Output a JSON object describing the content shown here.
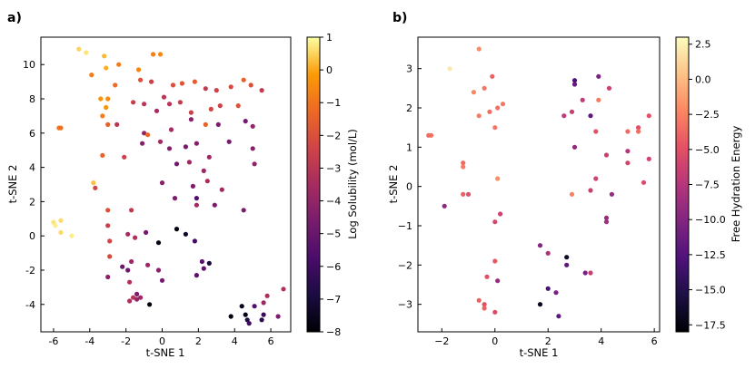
{
  "chart_data": [
    {
      "type": "scatter",
      "panel_label": "a)",
      "xlabel": "t-SNE 1",
      "ylabel": "t-SNE 2",
      "xlim": [
        -6.7,
        7.1
      ],
      "ylim": [
        -5.6,
        11.6
      ],
      "xticks": [
        "-6",
        "-4",
        "-2",
        "0",
        "2",
        "4",
        "6"
      ],
      "xtick_values": [
        -6,
        -4,
        -2,
        0,
        2,
        4,
        6
      ],
      "yticks": [
        "-4",
        "-2",
        "0",
        "2",
        "4",
        "6",
        "8",
        "10"
      ],
      "ytick_values": [
        -4,
        -2,
        0,
        2,
        4,
        6,
        8,
        10
      ],
      "colorbar": {
        "label": "Log Solubility (mol/L)",
        "colormap": "inferno",
        "range": [
          -8,
          1
        ],
        "ticks": [
          "1",
          "0",
          "−1",
          "−2",
          "−3",
          "−4",
          "−5",
          "−6",
          "−7",
          "−8"
        ],
        "tick_values": [
          1,
          0,
          -1,
          -2,
          -3,
          -4,
          -5,
          -6,
          -7,
          -8
        ]
      },
      "points": [
        [
          -4.6,
          10.9,
          0.5
        ],
        [
          -4.2,
          10.7,
          0.7
        ],
        [
          -3.2,
          10.5,
          0.2
        ],
        [
          -3.1,
          9.8,
          0.1
        ],
        [
          -2.4,
          10.0,
          -0.8
        ],
        [
          -1.3,
          9.7,
          -0.6
        ],
        [
          -0.5,
          10.6,
          -0.8
        ],
        [
          -0.1,
          10.6,
          -0.6
        ],
        [
          -3.9,
          9.4,
          -0.8
        ],
        [
          -2.6,
          8.8,
          -1.2
        ],
        [
          -3.4,
          8.0,
          -0.3
        ],
        [
          -3.0,
          8.0,
          -0.5
        ],
        [
          -3.1,
          7.5,
          -0.3
        ],
        [
          -3.3,
          7.0,
          -0.8
        ],
        [
          -3.0,
          6.5,
          -1.5
        ],
        [
          -5.7,
          6.3,
          -1.0
        ],
        [
          -5.6,
          6.3,
          -1.1
        ],
        [
          -1.2,
          9.1,
          -2.0
        ],
        [
          -0.6,
          9.0,
          -2.5
        ],
        [
          0.1,
          8.1,
          -3.0
        ],
        [
          0.6,
          8.8,
          -2.0
        ],
        [
          1.1,
          8.9,
          -1.8
        ],
        [
          1.8,
          9.0,
          -1.6
        ],
        [
          2.4,
          8.6,
          -2.8
        ],
        [
          3.0,
          8.5,
          -2.5
        ],
        [
          3.8,
          8.7,
          -2.2
        ],
        [
          4.5,
          9.1,
          -1.5
        ],
        [
          4.9,
          8.8,
          -2.0
        ],
        [
          5.5,
          8.5,
          -2.8
        ],
        [
          -1.6,
          7.8,
          -2.6
        ],
        [
          -1.0,
          7.7,
          -3.0
        ],
        [
          -0.3,
          7.3,
          -3.5
        ],
        [
          0.4,
          7.7,
          -3.0
        ],
        [
          1.0,
          7.8,
          -2.7
        ],
        [
          1.6,
          7.2,
          -2.5
        ],
        [
          2.7,
          7.4,
          -2.3
        ],
        [
          3.2,
          7.6,
          -2.4
        ],
        [
          4.2,
          7.6,
          -1.9
        ],
        [
          -2.5,
          6.5,
          -3.0
        ],
        [
          -1.0,
          6.0,
          -4.0
        ],
        [
          0.5,
          6.2,
          -3.5
        ],
        [
          1.6,
          6.8,
          -4.3
        ],
        [
          2.4,
          6.5,
          -1.5
        ],
        [
          3.1,
          6.5,
          -4.5
        ],
        [
          4.6,
          6.7,
          -4.7
        ],
        [
          5.0,
          6.4,
          -4.0
        ],
        [
          -3.3,
          4.7,
          -1.4
        ],
        [
          -2.1,
          4.6,
          -2.5
        ],
        [
          -1.1,
          5.4,
          -4.3
        ],
        [
          -0.8,
          5.9,
          -1.3
        ],
        [
          -0.1,
          5.5,
          -3.6
        ],
        [
          0.4,
          5.1,
          -4.4
        ],
        [
          1.3,
          5.2,
          -4.7
        ],
        [
          1.9,
          5.4,
          -4.4
        ],
        [
          2.6,
          4.6,
          -3.7
        ],
        [
          3.7,
          5.5,
          -4.7
        ],
        [
          5.0,
          5.1,
          -4.3
        ],
        [
          -3.8,
          3.1,
          0.3
        ],
        [
          -3.7,
          2.8,
          -2.3
        ],
        [
          0.8,
          4.2,
          -4.8
        ],
        [
          1.5,
          4.3,
          -3.7
        ],
        [
          2.3,
          3.8,
          -3.8
        ],
        [
          0.0,
          3.1,
          -4.2
        ],
        [
          1.7,
          2.9,
          -4.4
        ],
        [
          2.5,
          3.2,
          -3.4
        ],
        [
          3.3,
          2.7,
          -3.7
        ],
        [
          5.1,
          4.2,
          -4.1
        ],
        [
          -3.0,
          1.5,
          -2.0
        ],
        [
          -1.7,
          1.5,
          -2.8
        ],
        [
          0.7,
          2.2,
          -4.5
        ],
        [
          1.9,
          2.2,
          -5.5
        ],
        [
          1.9,
          1.8,
          -3.6
        ],
        [
          2.9,
          1.8,
          -4.6
        ],
        [
          4.5,
          1.5,
          -4.6
        ],
        [
          -6.0,
          0.8,
          0.7
        ],
        [
          -5.9,
          0.6,
          0.8
        ],
        [
          -5.6,
          0.9,
          0.6
        ],
        [
          -5.0,
          0.0,
          0.8
        ],
        [
          -5.6,
          0.2,
          0.6
        ],
        [
          -3.0,
          0.6,
          -2.6
        ],
        [
          -1.9,
          0.1,
          -3.5
        ],
        [
          -1.5,
          -0.1,
          -3.2
        ],
        [
          -0.9,
          0.2,
          -4.8
        ],
        [
          -0.2,
          -0.4,
          -7.8
        ],
        [
          0.8,
          0.4,
          -7.8
        ],
        [
          1.3,
          0.1,
          -7.3
        ],
        [
          1.8,
          -0.3,
          -5.9
        ],
        [
          -2.9,
          -0.3,
          -2.3
        ],
        [
          -2.9,
          -1.2,
          -2.2
        ],
        [
          -1.7,
          -1.5,
          -3.7
        ],
        [
          -0.8,
          -1.7,
          -3.8
        ],
        [
          -0.2,
          -2.0,
          -4.2
        ],
        [
          2.2,
          -1.5,
          -5.4
        ],
        [
          2.6,
          -1.6,
          -7.0
        ],
        [
          2.3,
          -1.9,
          -5.2
        ],
        [
          -3.0,
          -2.4,
          -4.2
        ],
        [
          -2.2,
          -1.8,
          -5.0
        ],
        [
          -1.9,
          -2.0,
          -4.9
        ],
        [
          -1.8,
          -2.7,
          -3.2
        ],
        [
          0.0,
          -2.6,
          -4.7
        ],
        [
          1.9,
          -2.3,
          -5.3
        ],
        [
          -1.8,
          -3.8,
          -3.3
        ],
        [
          -1.6,
          -3.6,
          -3.1
        ],
        [
          -1.4,
          -3.4,
          -4.6
        ],
        [
          -1.4,
          -3.7,
          -3.9
        ],
        [
          -1.2,
          -3.6,
          -3.7
        ],
        [
          -0.7,
          -4.0,
          -7.8
        ],
        [
          3.8,
          -4.7,
          -7.8
        ],
        [
          4.4,
          -4.1,
          -7.6
        ],
        [
          4.6,
          -4.6,
          -7.7
        ],
        [
          4.7,
          -4.9,
          -6.8
        ],
        [
          4.8,
          -5.1,
          -6.0
        ],
        [
          5.1,
          -4.1,
          -5.5
        ],
        [
          5.6,
          -4.6,
          -6.2
        ],
        [
          5.5,
          -4.9,
          -6.5
        ],
        [
          5.6,
          -3.9,
          -3.7
        ],
        [
          5.8,
          -3.5,
          -3.3
        ],
        [
          6.4,
          -4.7,
          -4.5
        ],
        [
          6.7,
          -3.1,
          -3.2
        ]
      ]
    },
    {
      "type": "scatter",
      "panel_label": "b)",
      "xlabel": "t-SNE 1",
      "ylabel": "t-SNE 2",
      "xlim": [
        -2.9,
        6.2
      ],
      "ylim": [
        -3.7,
        3.8
      ],
      "xticks": [
        "−2",
        "0",
        "2",
        "4",
        "6"
      ],
      "xtick_values": [
        -2,
        0,
        2,
        4,
        6
      ],
      "yticks": [
        "−3",
        "−2",
        "−1",
        "0",
        "1",
        "2",
        "3"
      ],
      "ytick_values": [
        -3,
        -2,
        -1,
        0,
        1,
        2,
        3
      ],
      "colorbar": {
        "label": "Free Hydration Energy",
        "colormap": "magma",
        "range": [
          -18,
          3
        ],
        "ticks": [
          "2.5",
          "0.0",
          "−2.5",
          "−5.0",
          "−7.5",
          "−10.0",
          "−12.5",
          "−15.0",
          "−17.5"
        ],
        "tick_values": [
          2.5,
          0.0,
          -2.5,
          -5.0,
          -7.5,
          -10.0,
          -12.5,
          -15.0,
          -17.5
        ]
      },
      "points": [
        [
          -1.7,
          3.0,
          2.0
        ],
        [
          -0.6,
          3.5,
          -2.0
        ],
        [
          -0.8,
          2.4,
          -2.3
        ],
        [
          -0.4,
          2.5,
          -3.0
        ],
        [
          -0.1,
          2.8,
          -4.0
        ],
        [
          -0.6,
          1.8,
          -2.8
        ],
        [
          -0.2,
          1.9,
          -3.5
        ],
        [
          0.1,
          2.0,
          -3.3
        ],
        [
          0.3,
          2.1,
          -3.0
        ],
        [
          0.0,
          1.5,
          -3.1
        ],
        [
          -2.4,
          1.3,
          -3.2
        ],
        [
          -2.5,
          1.3,
          -3.6
        ],
        [
          -1.2,
          0.6,
          -3.7
        ],
        [
          -1.2,
          0.5,
          -2.8
        ],
        [
          -1.2,
          -0.2,
          -4.2
        ],
        [
          -1.0,
          -0.2,
          -5.0
        ],
        [
          0.1,
          0.2,
          -2.0
        ],
        [
          0.2,
          -0.7,
          -6.2
        ],
        [
          0.0,
          -0.9,
          -5.7
        ],
        [
          -1.9,
          -0.5,
          -9.6
        ],
        [
          3.0,
          2.7,
          -13.0
        ],
        [
          3.0,
          2.6,
          -11.5
        ],
        [
          3.9,
          2.8,
          -10.5
        ],
        [
          2.6,
          1.8,
          -7.0
        ],
        [
          2.9,
          1.9,
          -6.5
        ],
        [
          3.6,
          1.8,
          -12.0
        ],
        [
          3.3,
          2.2,
          -7.0
        ],
        [
          3.9,
          2.2,
          -2.8
        ],
        [
          4.3,
          2.5,
          -6.3
        ],
        [
          3.8,
          1.4,
          -4.8
        ],
        [
          5.0,
          1.4,
          -3.6
        ],
        [
          5.4,
          1.5,
          -5.0
        ],
        [
          5.4,
          1.4,
          -3.5
        ],
        [
          5.8,
          1.8,
          -5.0
        ],
        [
          3.0,
          1.0,
          -9.3
        ],
        [
          2.9,
          -0.2,
          -2.6
        ],
        [
          4.2,
          0.8,
          -6.5
        ],
        [
          5.0,
          0.9,
          -7.5
        ],
        [
          5.0,
          0.6,
          -6.0
        ],
        [
          5.8,
          0.7,
          -6.0
        ],
        [
          3.8,
          0.2,
          -6.0
        ],
        [
          3.6,
          -0.1,
          -6.5
        ],
        [
          4.4,
          -0.2,
          -9.0
        ],
        [
          5.6,
          0.1,
          -5.5
        ],
        [
          4.2,
          -0.8,
          -9.0
        ],
        [
          4.2,
          -0.9,
          -8.5
        ],
        [
          1.7,
          -1.5,
          -10.0
        ],
        [
          2.0,
          -1.7,
          -8.0
        ],
        [
          2.7,
          -1.8,
          -16.5
        ],
        [
          2.7,
          -2.0,
          -12.0
        ],
        [
          0.0,
          -1.9,
          -4.5
        ],
        [
          -0.3,
          -2.3,
          -5.0
        ],
        [
          0.1,
          -2.4,
          -9.0
        ],
        [
          3.6,
          -2.2,
          -6.5
        ],
        [
          3.4,
          -2.2,
          -10.5
        ],
        [
          2.0,
          -2.6,
          -13.0
        ],
        [
          2.3,
          -2.7,
          -10.5
        ],
        [
          1.7,
          -3.0,
          -17.0
        ],
        [
          2.4,
          -3.3,
          -12.0
        ],
        [
          -0.6,
          -2.9,
          -4.0
        ],
        [
          -0.4,
          -3.0,
          -5.0
        ],
        [
          -0.4,
          -3.1,
          -4.0
        ],
        [
          0.0,
          -3.2,
          -5.5
        ]
      ]
    }
  ]
}
